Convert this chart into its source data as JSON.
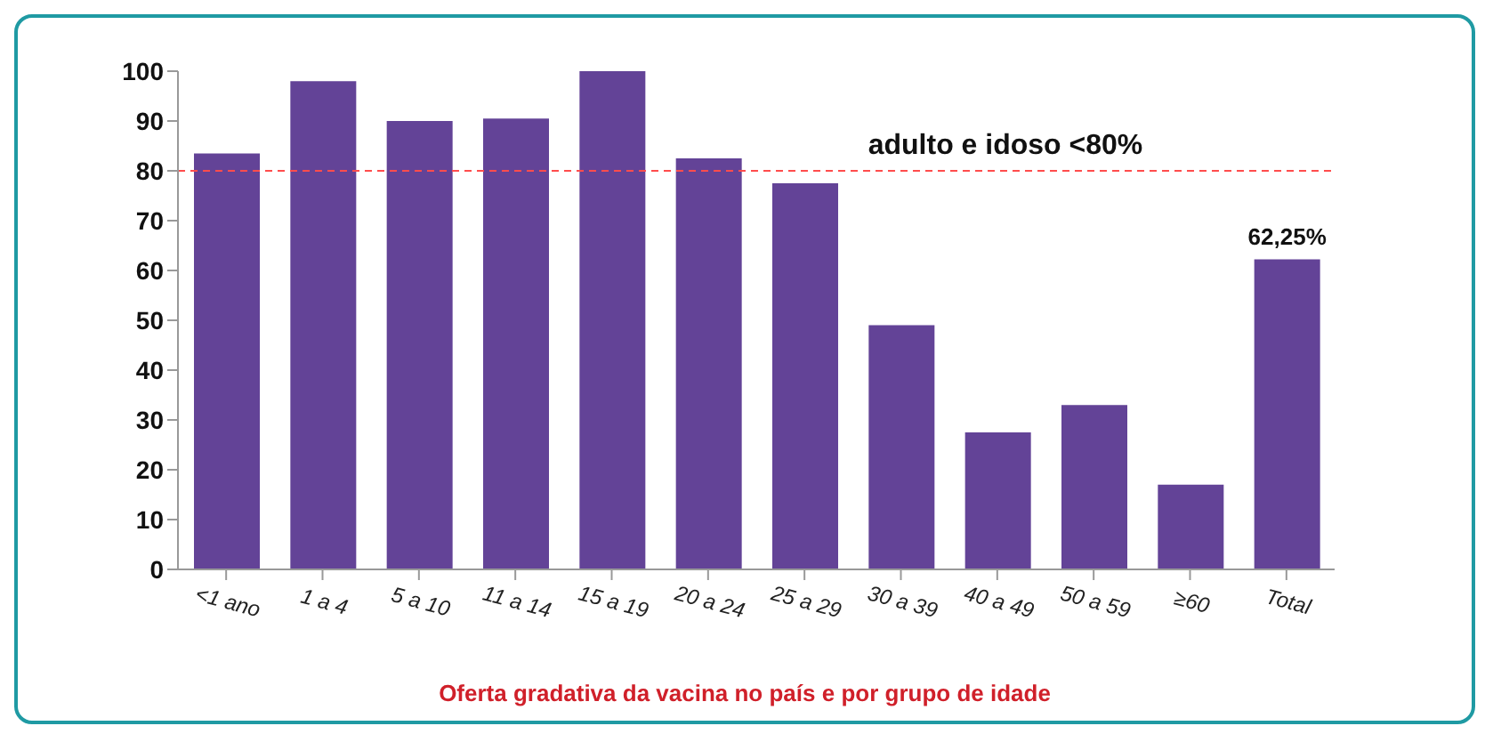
{
  "chart_data": {
    "type": "bar",
    "xlabel": "Oferta gradativa da vacina no país e por grupo de idade",
    "categories": [
      "<1 ano",
      "1 a 4",
      "5 a 10",
      "11 a 14",
      "15 a 19",
      "20 a 24",
      "25 a 29",
      "30 a 39",
      "40 a 49",
      "50 a 59",
      "≥60",
      "Total"
    ],
    "values": [
      83.5,
      98,
      90,
      90.5,
      100,
      82.5,
      77.5,
      49,
      27.5,
      33,
      17,
      62.25
    ],
    "value_labels": [
      null,
      null,
      null,
      null,
      null,
      null,
      null,
      null,
      null,
      null,
      null,
      "62,25%"
    ],
    "color": "#634397",
    "ylim": [
      0,
      100
    ],
    "yticks": [
      0,
      10,
      20,
      30,
      40,
      50,
      60,
      70,
      80,
      90,
      100
    ],
    "ref_lines": [
      {
        "axis": "y",
        "value": 80,
        "label": "adulto e idoso <80%",
        "color": "#ff4d4d",
        "line_style": "dashed"
      }
    ],
    "grid": false,
    "legend": false
  }
}
